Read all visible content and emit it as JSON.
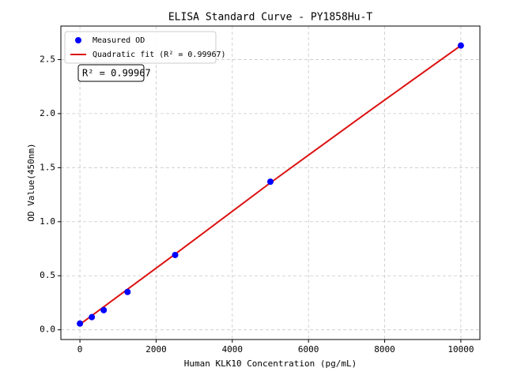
{
  "chart_data": {
    "type": "scatter",
    "title": "ELISA Standard Curve - PY1858Hu-T",
    "x_label": "Human KLK10 Concentration (pg/mL)",
    "y_label": "OD Value(450nm)",
    "annotation": "R² = 0.99967",
    "xlim": [
      -500,
      10500
    ],
    "ylim": [
      -0.09,
      2.81
    ],
    "xticks": [
      0,
      2000,
      4000,
      6000,
      8000,
      10000
    ],
    "yticks": [
      {
        "value": 0,
        "label": "0.0"
      },
      0.5,
      {
        "value": 1,
        "label": "1.0"
      },
      1.5,
      {
        "value": 2,
        "label": "2.0"
      },
      2.5
    ],
    "grid": true,
    "legend": "upper left",
    "series": [
      {
        "name": "Measured OD",
        "type": "scatter",
        "color": "#0000ff",
        "x": [
          0,
          312.5,
          625,
          1250,
          2500,
          5000,
          10000
        ],
        "values": [
          0.058,
          0.117,
          0.182,
          0.35,
          0.692,
          1.37,
          2.63
        ]
      },
      {
        "name": "Quadratic fit (R² = 0.99967)",
        "type": "line",
        "color": "#dd1111",
        "x": [
          0,
          2500,
          5000,
          7500,
          10000
        ],
        "values": [
          0.05,
          0.7,
          1.36,
          2.0,
          2.63
        ]
      }
    ]
  }
}
